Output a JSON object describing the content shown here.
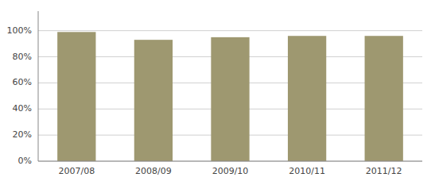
{
  "chart_data": {
    "type": "bar",
    "categories": [
      "2007/08",
      "2008/09",
      "2009/10",
      "2010/11",
      "2011/12"
    ],
    "values": [
      99,
      93,
      95,
      96,
      96
    ],
    "color": "#9e9870",
    "ylim": [
      0,
      115
    ],
    "yticks": [
      {
        "value": 0,
        "label": "0%"
      },
      {
        "value": 20,
        "label": "20%"
      },
      {
        "value": 40,
        "label": "40%"
      },
      {
        "value": 60,
        "label": "60%"
      },
      {
        "value": 80,
        "label": "80%"
      },
      {
        "value": 100,
        "label": "100%"
      }
    ],
    "grid": true
  }
}
